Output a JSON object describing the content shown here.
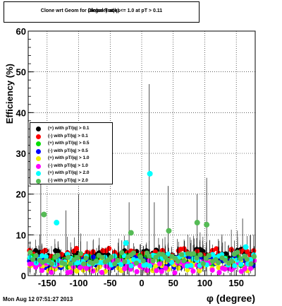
{
  "chart_data": {
    "type": "scatter",
    "title": "Clone wrt Geom for Global Tracks",
    "title_overlap": "(degree) at|q| <= 1.0 at pT > 0.11",
    "xlabel": "φ (degree)",
    "ylabel": "Efficiency (%)",
    "xlim": [
      -180,
      180
    ],
    "ylim": [
      0,
      60
    ],
    "x_ticks": [
      -150,
      -100,
      -50,
      0,
      50,
      100,
      150
    ],
    "y_ticks": [
      0,
      10,
      20,
      30,
      40,
      50,
      60
    ],
    "grid": true,
    "legend_position": "center-left",
    "series": [
      {
        "name": "(+) with pT/|q| > 0.1",
        "color": "#000000",
        "base": 5.0
      },
      {
        "name": "(-) with pT/|q| > 0.1",
        "color": "#ff0000",
        "base": 5.2
      },
      {
        "name": "(+) with pT/|q| > 0.5",
        "color": "#00dd00",
        "base": 3.5
      },
      {
        "name": "(-) with pT/|q| > 0.5",
        "color": "#0000ff",
        "base": 3.3
      },
      {
        "name": "(+) with pT/|q| > 1.0",
        "color": "#eeee00",
        "base": 2.5
      },
      {
        "name": "(-) with pT/|q| > 1.0",
        "color": "#ff00ff",
        "base": 2.2
      },
      {
        "name": "(+) with pT/|q| > 2.0",
        "color": "#00ffff",
        "base": 3.8
      },
      {
        "name": "(-) with pT/|q| > 2.0",
        "color": "#55bb55",
        "base": 4.3
      }
    ],
    "highlights": [
      {
        "series": 7,
        "x": -155,
        "y": 15
      },
      {
        "series": 6,
        "x": -135,
        "y": 13
      },
      {
        "series": 6,
        "x": 13,
        "y": 25
      },
      {
        "series": 7,
        "x": -17,
        "y": 10.5
      },
      {
        "series": 7,
        "x": 43,
        "y": 11
      },
      {
        "series": 7,
        "x": 88,
        "y": 13
      },
      {
        "series": 7,
        "x": 103,
        "y": 12.5
      },
      {
        "series": 6,
        "x": 165,
        "y": 7
      },
      {
        "series": 6,
        "x": -25,
        "y": 8
      }
    ],
    "bin_count": 72
  },
  "timestamp": "Mon Aug 12 07:51:27 2013"
}
